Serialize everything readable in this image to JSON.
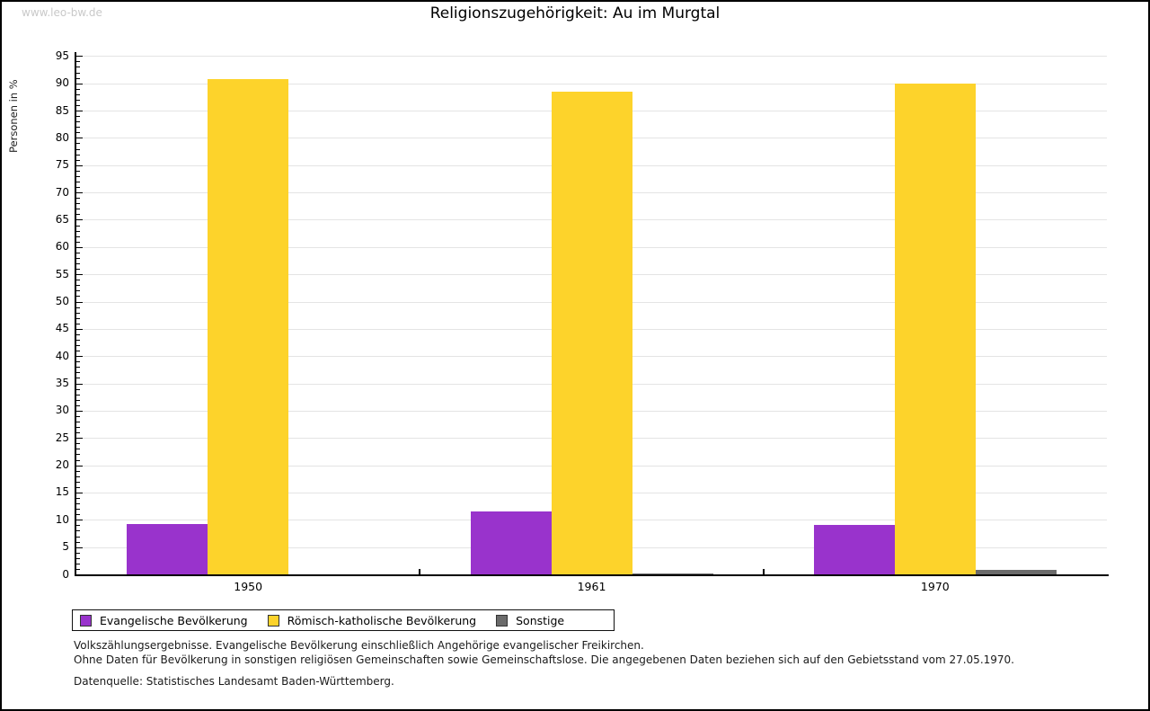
{
  "watermark": "www.leo-bw.de",
  "chart_data": {
    "type": "bar",
    "title": "Religionszugehörigkeit: Au im Murgtal",
    "ylabel": "Personen in %",
    "xlabel": "",
    "categories": [
      "1950",
      "1961",
      "1970"
    ],
    "series": [
      {
        "name": "Evangelische Bevölkerung",
        "color": "#9933cc",
        "values": [
          9.3,
          11.5,
          9.1
        ]
      },
      {
        "name": "Römisch-katholische Bevölkerung",
        "color": "#fdd32b",
        "values": [
          90.7,
          88.4,
          90.0
        ]
      },
      {
        "name": "Sonstige",
        "color": "#6b6b6b",
        "values": [
          0.0,
          0.1,
          0.9
        ]
      }
    ],
    "ylim": [
      0,
      95
    ],
    "ytick_step": 5,
    "y_minor_step": 1,
    "grid": true,
    "legend_position": "bottom-left"
  },
  "footnotes": [
    "Volkszählungsergebnisse. Evangelische Bevölkerung einschließlich Angehörige evangelischer Freikirchen.",
    "Ohne Daten für Bevölkerung in sonstigen religiösen Gemeinschaften sowie Gemeinschaftslose. Die angegebenen Daten beziehen sich auf den Gebietsstand vom 27.05.1970.",
    "Datenquelle: Statistisches Landesamt Baden-Württemberg."
  ]
}
